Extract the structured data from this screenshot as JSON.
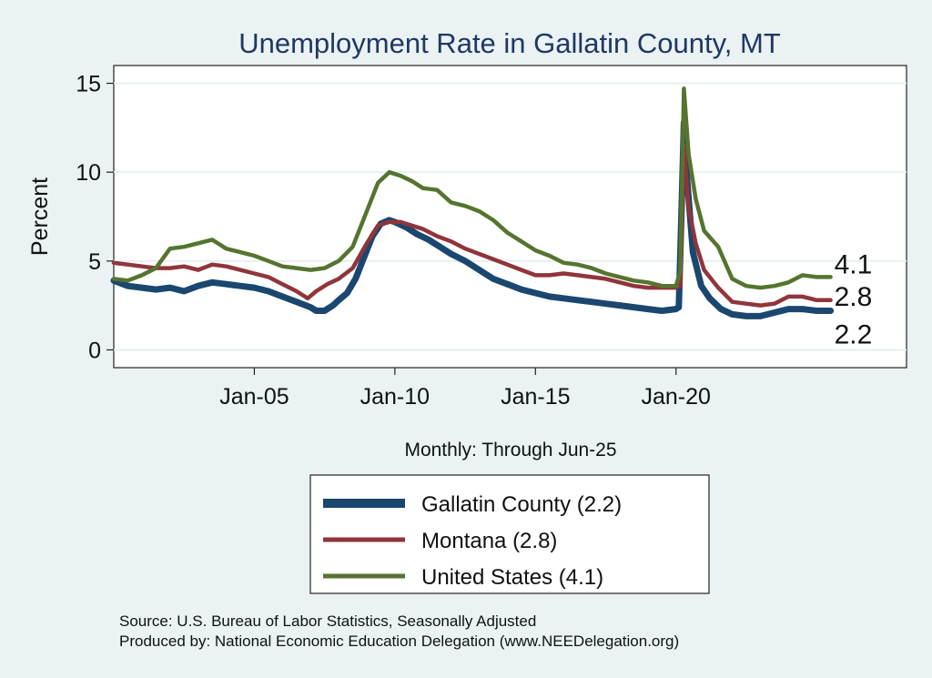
{
  "chart_data": {
    "type": "line",
    "title": "Unemployment Rate in Gallatin  County, MT",
    "xlabel": "Monthly: Through Jun-25",
    "ylabel": "Percent",
    "ylim": [
      -1,
      16
    ],
    "xlim": [
      2000,
      2028.2
    ],
    "grid": true,
    "y_ticks": [
      0,
      5,
      10,
      15
    ],
    "x_ticks": [
      {
        "value": 2005,
        "label": "Jan-05"
      },
      {
        "value": 2010,
        "label": "Jan-10"
      },
      {
        "value": 2015,
        "label": "Jan-15"
      },
      {
        "value": 2020,
        "label": "Jan-20"
      }
    ],
    "series": [
      {
        "key": "gallatin",
        "name": "Gallatin  County (2.2)",
        "color": "#1a476f",
        "end_label": "2.2",
        "points": [
          [
            2000.0,
            3.9
          ],
          [
            2000.5,
            3.6
          ],
          [
            2001.0,
            3.5
          ],
          [
            2001.5,
            3.4
          ],
          [
            2002.0,
            3.5
          ],
          [
            2002.5,
            3.3
          ],
          [
            2003.0,
            3.6
          ],
          [
            2003.5,
            3.8
          ],
          [
            2004.0,
            3.7
          ],
          [
            2004.5,
            3.6
          ],
          [
            2005.0,
            3.5
          ],
          [
            2005.5,
            3.3
          ],
          [
            2006.0,
            3.0
          ],
          [
            2006.5,
            2.7
          ],
          [
            2007.0,
            2.4
          ],
          [
            2007.2,
            2.2
          ],
          [
            2007.5,
            2.2
          ],
          [
            2007.8,
            2.5
          ],
          [
            2008.0,
            2.8
          ],
          [
            2008.3,
            3.2
          ],
          [
            2008.6,
            4.0
          ],
          [
            2008.9,
            5.2
          ],
          [
            2009.2,
            6.4
          ],
          [
            2009.5,
            7.1
          ],
          [
            2009.8,
            7.3
          ],
          [
            2010.0,
            7.2
          ],
          [
            2010.4,
            6.9
          ],
          [
            2010.8,
            6.5
          ],
          [
            2011.2,
            6.2
          ],
          [
            2011.6,
            5.8
          ],
          [
            2012.0,
            5.4
          ],
          [
            2012.5,
            5.0
          ],
          [
            2013.0,
            4.5
          ],
          [
            2013.5,
            4.0
          ],
          [
            2014.0,
            3.7
          ],
          [
            2014.5,
            3.4
          ],
          [
            2015.0,
            3.2
          ],
          [
            2015.5,
            3.0
          ],
          [
            2016.0,
            2.9
          ],
          [
            2016.5,
            2.8
          ],
          [
            2017.0,
            2.7
          ],
          [
            2017.5,
            2.6
          ],
          [
            2018.0,
            2.5
          ],
          [
            2018.5,
            2.4
          ],
          [
            2019.0,
            2.3
          ],
          [
            2019.5,
            2.2
          ],
          [
            2020.0,
            2.3
          ],
          [
            2020.1,
            2.4
          ],
          [
            2020.2,
            8.0
          ],
          [
            2020.28,
            12.8
          ],
          [
            2020.4,
            9.5
          ],
          [
            2020.6,
            5.5
          ],
          [
            2020.9,
            3.6
          ],
          [
            2021.2,
            2.9
          ],
          [
            2021.6,
            2.3
          ],
          [
            2022.0,
            2.0
          ],
          [
            2022.5,
            1.9
          ],
          [
            2023.0,
            1.9
          ],
          [
            2023.5,
            2.1
          ],
          [
            2024.0,
            2.3
          ],
          [
            2024.5,
            2.3
          ],
          [
            2025.0,
            2.2
          ],
          [
            2025.5,
            2.2
          ]
        ]
      },
      {
        "key": "montana",
        "name": "Montana (2.8)",
        "color": "#90353b",
        "end_label": "2.8",
        "points": [
          [
            2000.0,
            4.9
          ],
          [
            2000.5,
            4.8
          ],
          [
            2001.0,
            4.7
          ],
          [
            2001.5,
            4.6
          ],
          [
            2002.0,
            4.6
          ],
          [
            2002.5,
            4.7
          ],
          [
            2003.0,
            4.5
          ],
          [
            2003.5,
            4.8
          ],
          [
            2004.0,
            4.7
          ],
          [
            2004.5,
            4.5
          ],
          [
            2005.0,
            4.3
          ],
          [
            2005.5,
            4.1
          ],
          [
            2006.0,
            3.7
          ],
          [
            2006.5,
            3.3
          ],
          [
            2006.9,
            2.9
          ],
          [
            2007.2,
            3.3
          ],
          [
            2007.6,
            3.7
          ],
          [
            2008.0,
            4.0
          ],
          [
            2008.5,
            4.6
          ],
          [
            2009.0,
            6.0
          ],
          [
            2009.4,
            7.0
          ],
          [
            2009.8,
            7.2
          ],
          [
            2010.2,
            7.2
          ],
          [
            2010.6,
            7.0
          ],
          [
            2011.0,
            6.8
          ],
          [
            2011.5,
            6.4
          ],
          [
            2012.0,
            6.1
          ],
          [
            2012.5,
            5.7
          ],
          [
            2013.0,
            5.4
          ],
          [
            2013.5,
            5.1
          ],
          [
            2014.0,
            4.8
          ],
          [
            2014.5,
            4.5
          ],
          [
            2015.0,
            4.2
          ],
          [
            2015.5,
            4.2
          ],
          [
            2016.0,
            4.3
          ],
          [
            2016.5,
            4.2
          ],
          [
            2017.0,
            4.1
          ],
          [
            2017.5,
            4.0
          ],
          [
            2018.0,
            3.8
          ],
          [
            2018.5,
            3.6
          ],
          [
            2019.0,
            3.5
          ],
          [
            2019.5,
            3.5
          ],
          [
            2020.0,
            3.5
          ],
          [
            2020.15,
            3.6
          ],
          [
            2020.28,
            11.5
          ],
          [
            2020.45,
            8.0
          ],
          [
            2020.7,
            6.0
          ],
          [
            2021.0,
            4.5
          ],
          [
            2021.5,
            3.5
          ],
          [
            2022.0,
            2.7
          ],
          [
            2022.5,
            2.6
          ],
          [
            2023.0,
            2.5
          ],
          [
            2023.5,
            2.6
          ],
          [
            2024.0,
            3.0
          ],
          [
            2024.5,
            3.0
          ],
          [
            2025.0,
            2.8
          ],
          [
            2025.5,
            2.8
          ]
        ]
      },
      {
        "key": "us",
        "name": "United States (4.1)",
        "color": "#55752f",
        "end_label": "4.1",
        "points": [
          [
            2000.0,
            4.0
          ],
          [
            2000.5,
            3.9
          ],
          [
            2001.0,
            4.2
          ],
          [
            2001.5,
            4.6
          ],
          [
            2002.0,
            5.7
          ],
          [
            2002.5,
            5.8
          ],
          [
            2003.0,
            6.0
          ],
          [
            2003.5,
            6.2
          ],
          [
            2004.0,
            5.7
          ],
          [
            2004.5,
            5.5
          ],
          [
            2005.0,
            5.3
          ],
          [
            2005.5,
            5.0
          ],
          [
            2006.0,
            4.7
          ],
          [
            2006.5,
            4.6
          ],
          [
            2007.0,
            4.5
          ],
          [
            2007.5,
            4.6
          ],
          [
            2008.0,
            5.0
          ],
          [
            2008.5,
            5.8
          ],
          [
            2009.0,
            7.8
          ],
          [
            2009.4,
            9.4
          ],
          [
            2009.8,
            10.0
          ],
          [
            2010.2,
            9.8
          ],
          [
            2010.6,
            9.5
          ],
          [
            2011.0,
            9.1
          ],
          [
            2011.5,
            9.0
          ],
          [
            2012.0,
            8.3
          ],
          [
            2012.5,
            8.1
          ],
          [
            2013.0,
            7.8
          ],
          [
            2013.5,
            7.3
          ],
          [
            2014.0,
            6.6
          ],
          [
            2014.5,
            6.1
          ],
          [
            2015.0,
            5.6
          ],
          [
            2015.5,
            5.3
          ],
          [
            2016.0,
            4.9
          ],
          [
            2016.5,
            4.8
          ],
          [
            2017.0,
            4.6
          ],
          [
            2017.5,
            4.3
          ],
          [
            2018.0,
            4.1
          ],
          [
            2018.5,
            3.9
          ],
          [
            2019.0,
            3.8
          ],
          [
            2019.5,
            3.6
          ],
          [
            2020.0,
            3.6
          ],
          [
            2020.15,
            4.4
          ],
          [
            2020.28,
            14.7
          ],
          [
            2020.45,
            11.0
          ],
          [
            2020.7,
            8.5
          ],
          [
            2021.0,
            6.7
          ],
          [
            2021.5,
            5.8
          ],
          [
            2022.0,
            4.0
          ],
          [
            2022.5,
            3.6
          ],
          [
            2023.0,
            3.5
          ],
          [
            2023.5,
            3.6
          ],
          [
            2024.0,
            3.8
          ],
          [
            2024.5,
            4.2
          ],
          [
            2025.0,
            4.1
          ],
          [
            2025.5,
            4.1
          ]
        ]
      }
    ]
  },
  "source_lines": [
    "Source: U.S. Bureau of Labor Statistics, Seasonally Adjusted",
    "Produced by: National Economic Education Delegation (www.NEEDelegation.org)"
  ]
}
